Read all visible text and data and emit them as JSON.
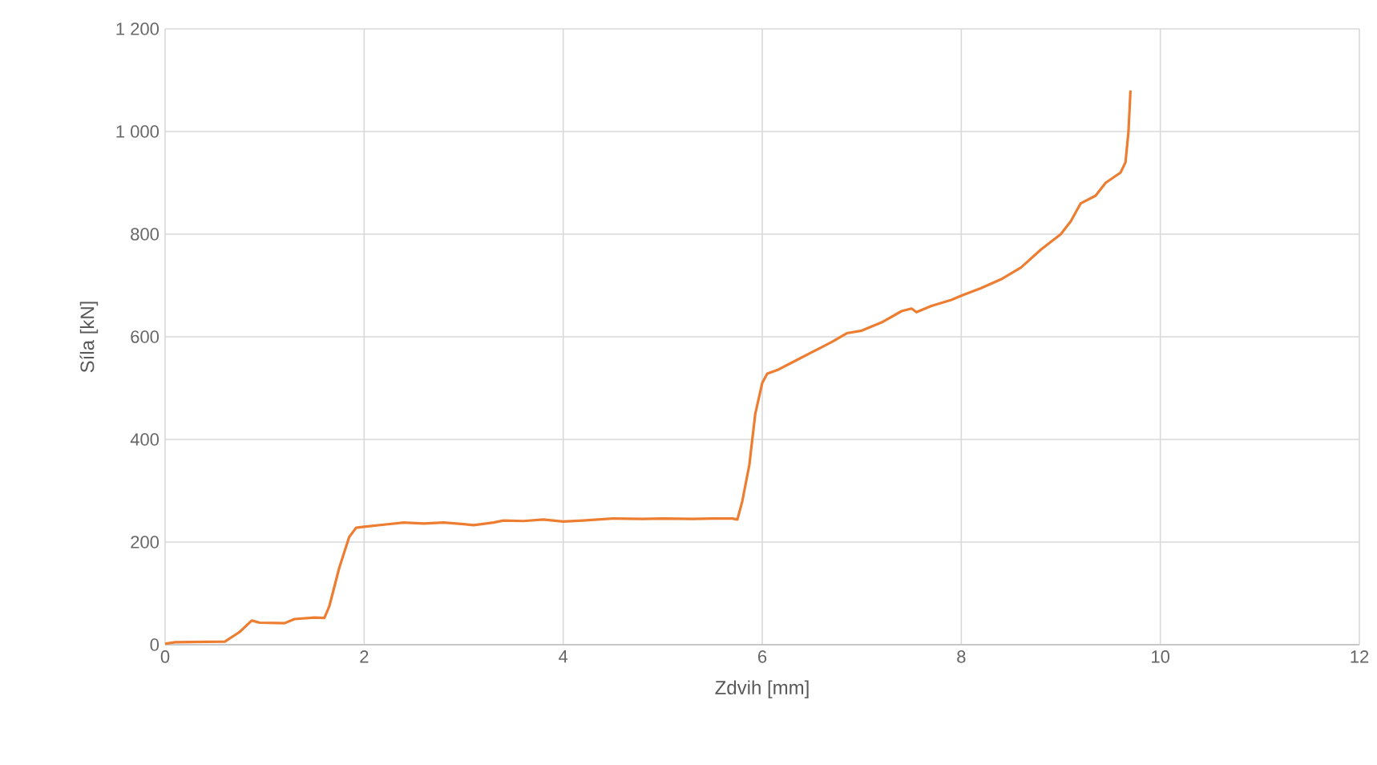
{
  "chart_data": {
    "type": "line",
    "xlabel": "Zdvih [mm]",
    "ylabel": "Síla [kN]",
    "xlim": [
      0,
      12
    ],
    "xticks": [
      0,
      2,
      4,
      6,
      8,
      10,
      12
    ],
    "ylim": [
      0,
      1200
    ],
    "yticks": [
      0,
      200,
      400,
      600,
      800,
      {
        "value": 1000,
        "label": "1 000"
      },
      {
        "value": 1200,
        "label": "1 200"
      }
    ],
    "grid": true,
    "marker": "none",
    "line_style": "solid",
    "series": [
      {
        "color": "#ed7d31",
        "x": [
          0,
          0.1,
          0.6,
          0.75,
          0.87,
          0.95,
          1.2,
          1.3,
          1.5,
          1.6,
          1.65,
          1.75,
          1.85,
          1.92,
          2.0,
          2.2,
          2.4,
          2.6,
          2.8,
          3.0,
          3.1,
          3.3,
          3.4,
          3.6,
          3.8,
          4.0,
          4.2,
          4.5,
          4.8,
          5.0,
          5.3,
          5.5,
          5.7,
          5.75,
          5.8,
          5.87,
          5.93,
          6.0,
          6.05,
          6.15,
          6.3,
          6.5,
          6.7,
          6.85,
          7.0,
          7.2,
          7.4,
          7.5,
          7.55,
          7.7,
          7.9,
          8.0,
          8.2,
          8.4,
          8.6,
          8.8,
          9.0,
          9.1,
          9.2,
          9.35,
          9.45,
          9.6,
          9.65,
          9.68,
          9.7
        ],
        "values": [
          2,
          5,
          6,
          25,
          47,
          43,
          42,
          50,
          53,
          52,
          75,
          150,
          210,
          228,
          230,
          234,
          238,
          236,
          238,
          235,
          233,
          238,
          242,
          241,
          244,
          240,
          242,
          246,
          245,
          246,
          245,
          246,
          246,
          244,
          280,
          350,
          450,
          510,
          528,
          535,
          550,
          570,
          590,
          607,
          612,
          628,
          650,
          655,
          648,
          660,
          672,
          680,
          695,
          712,
          735,
          770,
          800,
          825,
          860,
          875,
          900,
          920,
          940,
          1000,
          1080
        ]
      }
    ]
  }
}
